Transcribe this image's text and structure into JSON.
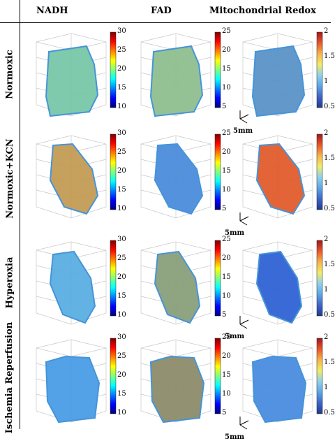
{
  "columns": [
    "NADH",
    "FAD",
    "Mitochondrial Redox"
  ],
  "rows": [
    "Normoxic",
    "Normoxic+KCN",
    "Hyperoxia",
    "Ischemia Reperfusion"
  ],
  "colorbars": {
    "NADH": [
      "30",
      "25",
      "20",
      "15",
      "10"
    ],
    "FAD": [
      "25",
      "20",
      "15",
      "10",
      "5"
    ],
    "Redox": [
      "2",
      "1.5",
      "1",
      "0.5"
    ]
  },
  "scale_label": "5mm",
  "colors": {
    "jet": [
      "#00007f",
      "#0000ff",
      "#007fff",
      "#00ffff",
      "#7fff7f",
      "#ffff00",
      "#ff7f00",
      "#ff0000",
      "#7f0000"
    ],
    "redox": [
      "#1f3a8f",
      "#3f64c8",
      "#5ca7e6",
      "#8fd1ea",
      "#f2ec6a",
      "#f6b548",
      "#e8562d",
      "#a01818"
    ]
  },
  "panel_tints": {
    "NADH": [
      "#79c7a8",
      "#c49b55",
      "#5aaee2",
      "#4a9ee6"
    ],
    "FAD": [
      "#8fbf90",
      "#4c8ddd",
      "#8aa07a",
      "#8d8c6a"
    ],
    "Redox": [
      "#5a94c8",
      "#e25c2c",
      "#2f63d4",
      "#4a8de0"
    ]
  }
}
